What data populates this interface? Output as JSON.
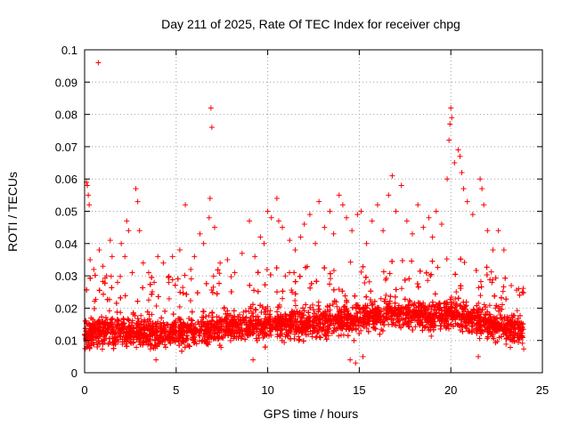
{
  "chart_data": {
    "type": "scatter",
    "title": "Day 211 of 2025, Rate Of TEC Index for receiver chpg",
    "xlabel": "GPS time / hours",
    "ylabel": "ROTI / TECUs",
    "xlim": [
      0,
      25
    ],
    "ylim": [
      0,
      0.1
    ],
    "x_ticks": [
      0,
      5,
      10,
      15,
      20,
      25
    ],
    "y_ticks": [
      0,
      0.01,
      0.02,
      0.03,
      0.04,
      0.05,
      0.06,
      0.07,
      0.08,
      0.09,
      0.1
    ],
    "x_tick_labels": [
      "0",
      "5",
      "10",
      "15",
      "20",
      "25"
    ],
    "y_tick_labels": [
      "0",
      "0.01",
      "0.02",
      "0.03",
      "0.04",
      "0.05",
      "0.06",
      "0.07",
      "0.08",
      "0.09",
      "0.1"
    ],
    "grid": true,
    "marker": "+",
    "color": "#ff0000",
    "series": [
      {
        "points": [
          [
            0.1,
            0.059
          ],
          [
            0.15,
            0.058
          ],
          [
            0.2,
            0.055
          ],
          [
            0.25,
            0.052
          ],
          [
            0.3,
            0.035
          ],
          [
            0.5,
            0.032
          ],
          [
            0.75,
            0.096
          ],
          [
            0.8,
            0.038
          ],
          [
            1.0,
            0.033
          ],
          [
            1.2,
            0.03
          ],
          [
            1.4,
            0.041
          ],
          [
            1.5,
            0.036
          ],
          [
            1.8,
            0.028
          ],
          [
            2.0,
            0.04
          ],
          [
            2.2,
            0.036
          ],
          [
            2.3,
            0.047
          ],
          [
            2.4,
            0.044
          ],
          [
            2.6,
            0.031
          ],
          [
            2.8,
            0.057
          ],
          [
            2.9,
            0.053
          ],
          [
            3.0,
            0.044
          ],
          [
            3.2,
            0.034
          ],
          [
            3.5,
            0.031
          ],
          [
            3.8,
            0.028
          ],
          [
            4.0,
            0.036
          ],
          [
            4.3,
            0.034
          ],
          [
            4.6,
            0.028
          ],
          [
            4.8,
            0.036
          ],
          [
            5.2,
            0.038
          ],
          [
            5.5,
            0.052
          ],
          [
            5.8,
            0.032
          ],
          [
            6.0,
            0.036
          ],
          [
            6.3,
            0.043
          ],
          [
            6.5,
            0.04
          ],
          [
            6.8,
            0.048
          ],
          [
            6.85,
            0.054
          ],
          [
            6.9,
            0.082
          ],
          [
            6.95,
            0.076
          ],
          [
            7.1,
            0.045
          ],
          [
            7.4,
            0.034
          ],
          [
            7.8,
            0.035
          ],
          [
            8.2,
            0.031
          ],
          [
            8.6,
            0.037
          ],
          [
            9.0,
            0.047
          ],
          [
            9.3,
            0.036
          ],
          [
            9.6,
            0.042
          ],
          [
            9.8,
            0.04
          ],
          [
            10.0,
            0.05
          ],
          [
            10.2,
            0.048
          ],
          [
            10.5,
            0.054
          ],
          [
            10.6,
            0.047
          ],
          [
            10.8,
            0.045
          ],
          [
            11.2,
            0.041
          ],
          [
            11.5,
            0.038
          ],
          [
            11.8,
            0.042
          ],
          [
            12.0,
            0.046
          ],
          [
            12.3,
            0.049
          ],
          [
            12.6,
            0.04
          ],
          [
            12.8,
            0.053
          ],
          [
            13.1,
            0.045
          ],
          [
            13.4,
            0.05
          ],
          [
            13.6,
            0.043
          ],
          [
            13.9,
            0.055
          ],
          [
            14.1,
            0.052
          ],
          [
            14.3,
            0.048
          ],
          [
            14.6,
            0.044
          ],
          [
            14.9,
            0.049
          ],
          [
            15.1,
            0.05
          ],
          [
            15.4,
            0.04
          ],
          [
            15.7,
            0.047
          ],
          [
            16.0,
            0.052
          ],
          [
            16.3,
            0.044
          ],
          [
            16.6,
            0.055
          ],
          [
            16.8,
            0.061
          ],
          [
            17.0,
            0.05
          ],
          [
            17.3,
            0.058
          ],
          [
            17.6,
            0.047
          ],
          [
            17.9,
            0.043
          ],
          [
            18.2,
            0.052
          ],
          [
            18.5,
            0.045
          ],
          [
            18.8,
            0.048
          ],
          [
            19.0,
            0.042
          ],
          [
            19.2,
            0.05
          ],
          [
            19.5,
            0.046
          ],
          [
            19.8,
            0.06
          ],
          [
            19.9,
            0.072
          ],
          [
            19.95,
            0.077
          ],
          [
            20.0,
            0.082
          ],
          [
            20.05,
            0.079
          ],
          [
            20.2,
            0.065
          ],
          [
            20.4,
            0.069
          ],
          [
            20.5,
            0.067
          ],
          [
            20.6,
            0.062
          ],
          [
            20.7,
            0.057
          ],
          [
            20.9,
            0.053
          ],
          [
            21.2,
            0.049
          ],
          [
            21.6,
            0.06
          ],
          [
            21.7,
            0.057
          ],
          [
            21.8,
            0.052
          ],
          [
            22.0,
            0.044
          ],
          [
            22.3,
            0.038
          ],
          [
            22.6,
            0.044
          ],
          [
            22.9,
            0.038
          ],
          [
            23.3,
            0.027
          ],
          [
            23.7,
            0.026
          ],
          [
            23.9,
            0.025
          ],
          [
            3.9,
            0.004
          ],
          [
            9.2,
            0.004
          ],
          [
            14.5,
            0.004
          ],
          [
            14.8,
            0.003
          ],
          [
            15.2,
            0.005
          ],
          [
            21.5,
            0.005
          ]
        ],
        "band": {
          "x_start": 0.0,
          "x_end": 24.0,
          "typical_low": 0.008,
          "typical_high": 0.022,
          "profile": [
            [
              0,
              0.012
            ],
            [
              1,
              0.013
            ],
            [
              2,
              0.013
            ],
            [
              3,
              0.012
            ],
            [
              4,
              0.012
            ],
            [
              5,
              0.012
            ],
            [
              6,
              0.013
            ],
            [
              7,
              0.014
            ],
            [
              8,
              0.014
            ],
            [
              9,
              0.015
            ],
            [
              10,
              0.015
            ],
            [
              11,
              0.015
            ],
            [
              12,
              0.015
            ],
            [
              13,
              0.016
            ],
            [
              14,
              0.016
            ],
            [
              15,
              0.017
            ],
            [
              16,
              0.018
            ],
            [
              17,
              0.019
            ],
            [
              18,
              0.018
            ],
            [
              19,
              0.017
            ],
            [
              20,
              0.018
            ],
            [
              21,
              0.017
            ],
            [
              22,
              0.015
            ],
            [
              23,
              0.014
            ],
            [
              24,
              0.013
            ]
          ]
        }
      }
    ]
  }
}
